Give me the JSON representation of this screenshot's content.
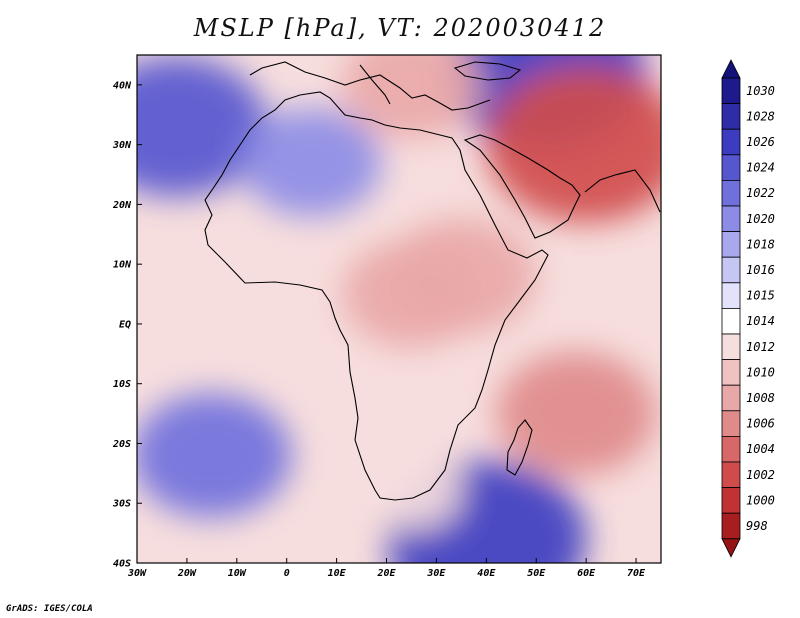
{
  "title": "MSLP [hPa], VT: 2020030412",
  "credit": "GrADS: IGES/COLA",
  "map": {
    "lon_range": [
      -30,
      75
    ],
    "lat_range": [
      -40,
      45
    ],
    "lon_ticks": [
      {
        "value": -30,
        "label": "30W"
      },
      {
        "value": -20,
        "label": "20W"
      },
      {
        "value": -10,
        "label": "10W"
      },
      {
        "value": 0,
        "label": "0"
      },
      {
        "value": 10,
        "label": "10E"
      },
      {
        "value": 20,
        "label": "20E"
      },
      {
        "value": 30,
        "label": "30E"
      },
      {
        "value": 40,
        "label": "40E"
      },
      {
        "value": 50,
        "label": "50E"
      },
      {
        "value": 60,
        "label": "60E"
      },
      {
        "value": 70,
        "label": "70E"
      }
    ],
    "lat_ticks": [
      {
        "value": 40,
        "label": "40N"
      },
      {
        "value": 30,
        "label": "30N"
      },
      {
        "value": 20,
        "label": "20N"
      },
      {
        "value": 10,
        "label": "10N"
      },
      {
        "value": 0,
        "label": "EQ"
      },
      {
        "value": -10,
        "label": "10S"
      },
      {
        "value": -20,
        "label": "20S"
      },
      {
        "value": -30,
        "label": "30S"
      },
      {
        "value": -40,
        "label": "40S"
      }
    ],
    "pressure_centers": [
      {
        "lon": -22,
        "lat": 33,
        "value": 1024,
        "kind": "high"
      },
      {
        "lon": 5,
        "lat": 27,
        "value": 1020,
        "kind": "high"
      },
      {
        "lon": 52,
        "lat": 42,
        "value": 1026,
        "kind": "high"
      },
      {
        "lon": -15,
        "lat": -22,
        "value": 1022,
        "kind": "high"
      },
      {
        "lon": 40,
        "lat": -36,
        "value": 1026,
        "kind": "high"
      },
      {
        "lon": 25,
        "lat": 5,
        "value": 1008,
        "kind": "low"
      },
      {
        "lon": 35,
        "lat": 8,
        "value": 1007,
        "kind": "low"
      },
      {
        "lon": 60,
        "lat": 30,
        "value": 1002,
        "kind": "low"
      },
      {
        "lon": 58,
        "lat": -15,
        "value": 1006,
        "kind": "low"
      },
      {
        "lon": 25,
        "lat": 40,
        "value": 1008,
        "kind": "low"
      },
      {
        "lon": 25,
        "lat": -28,
        "value": 1012,
        "kind": "low"
      }
    ]
  },
  "colorbar": {
    "levels": [
      {
        "label": "1030",
        "color": "#1c1a8c"
      },
      {
        "label": "1028",
        "color": "#2e2ca6"
      },
      {
        "label": "1026",
        "color": "#3c3cc0"
      },
      {
        "label": "1024",
        "color": "#5656cf"
      },
      {
        "label": "1022",
        "color": "#7070dc"
      },
      {
        "label": "1020",
        "color": "#8c8ce6"
      },
      {
        "label": "1018",
        "color": "#a8a8ee"
      },
      {
        "label": "1016",
        "color": "#c6c6f4"
      },
      {
        "label": "1015",
        "color": "#e2e2fa"
      },
      {
        "label": "1014",
        "color": "#ffffff"
      },
      {
        "label": "1012",
        "color": "#f7dede"
      },
      {
        "label": "1010",
        "color": "#f1c2c2"
      },
      {
        "label": "1008",
        "color": "#e9a8a8"
      },
      {
        "label": "1006",
        "color": "#e08a8a"
      },
      {
        "label": "1004",
        "color": "#d86868"
      },
      {
        "label": "1002",
        "color": "#d04c4c"
      },
      {
        "label": "1000",
        "color": "#c23232"
      },
      {
        "label": "998",
        "color": "#a81e1e"
      }
    ],
    "top_arrow_color": "#14127a",
    "bottom_arrow_color": "#941414"
  }
}
